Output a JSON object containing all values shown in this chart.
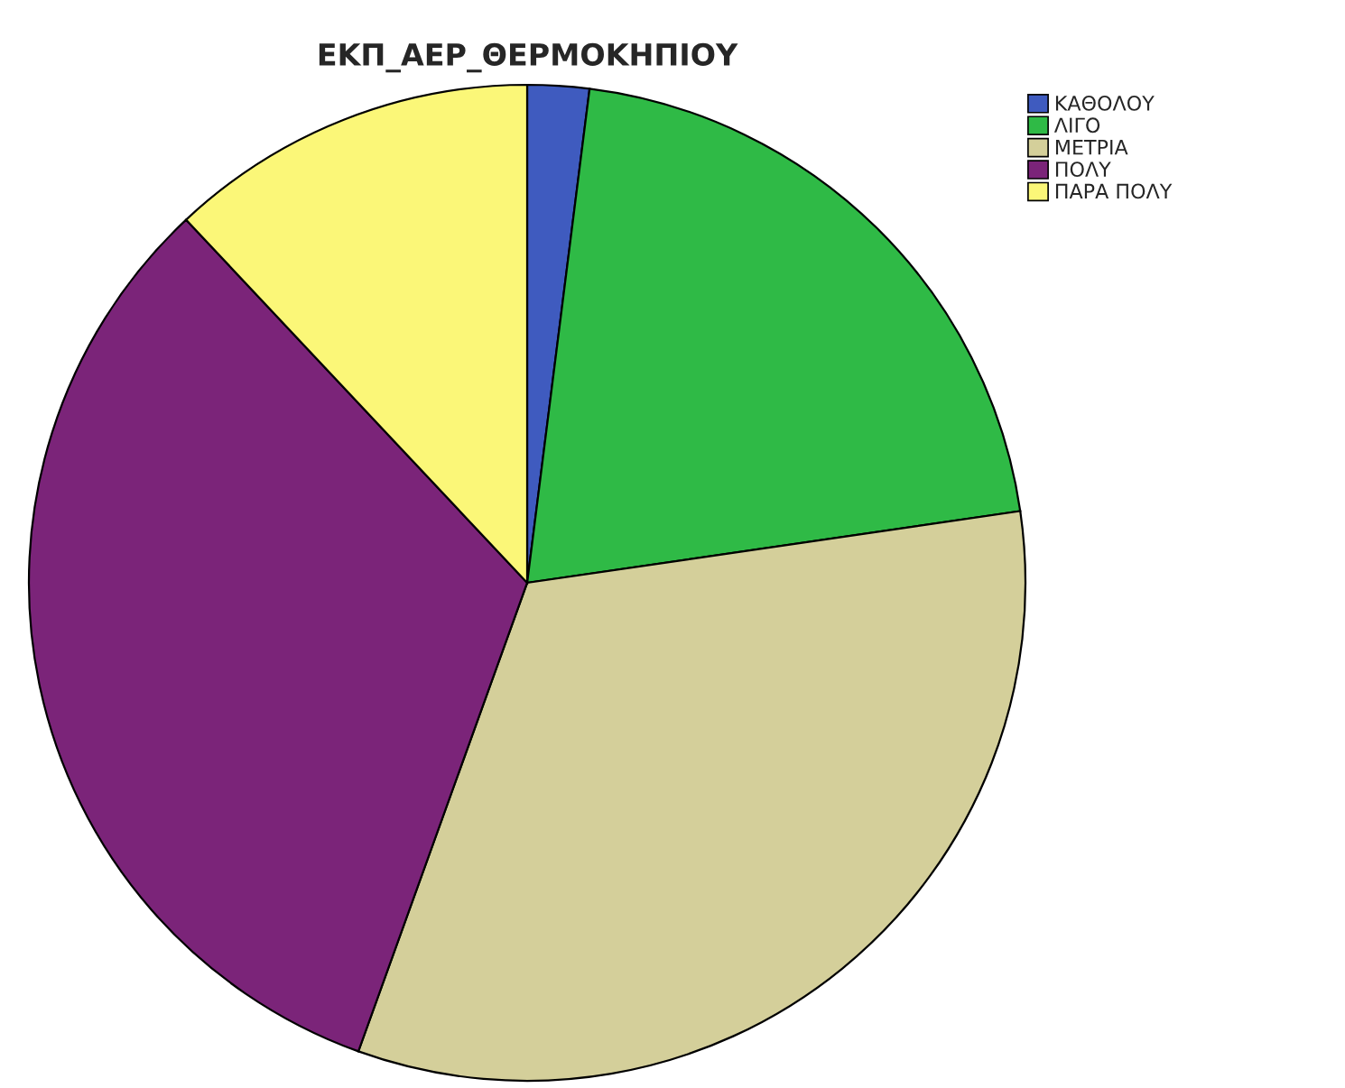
{
  "chart_data": {
    "type": "pie",
    "title": "ΕΚΠ_ΑΕΡ_ΘΕΡΜΟΚΗΠΙΟΥ",
    "categories": [
      "ΚΑΘΟΛΟΥ",
      "ΛΙΓΟ",
      "ΜΕΤΡΙΑ",
      "ΠΟΛΥ",
      "ΠΑΡΑ ΠΟΛΥ"
    ],
    "values": [
      2,
      20.7,
      32.8,
      32.5,
      12
    ],
    "colors": [
      "#3f5bbf",
      "#2fba46",
      "#d4cf9a",
      "#7b2479",
      "#fbf778"
    ],
    "legend": "top right"
  }
}
